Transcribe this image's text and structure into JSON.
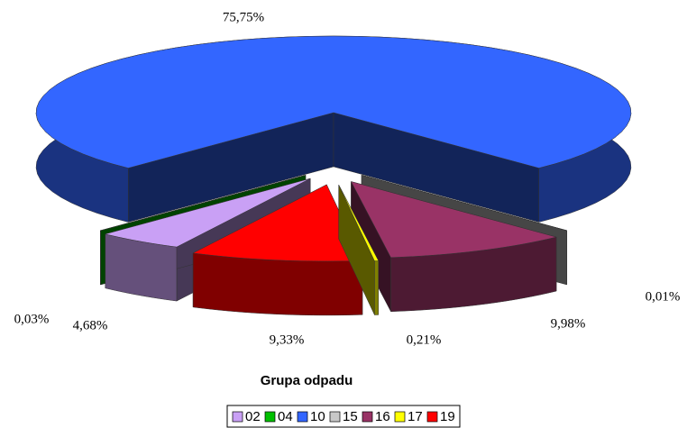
{
  "chart_data": {
    "type": "pie3d",
    "title": "Grupa odpadu",
    "categories": [
      "02",
      "04",
      "10",
      "15",
      "16",
      "17",
      "19"
    ],
    "values": [
      4.68,
      0.03,
      75.75,
      0.01,
      9.98,
      0.21,
      9.33
    ],
    "value_labels": [
      "4,68%",
      "0,03%",
      "75,75%",
      "0,01%",
      "9,98%",
      "0,21%",
      "9,33%"
    ],
    "colors": [
      "#c9a0f5",
      "#00c000",
      "#3366ff",
      "#c8c8c8",
      "#993366",
      "#ffff00",
      "#ff0000"
    ],
    "legend": "bottom"
  }
}
